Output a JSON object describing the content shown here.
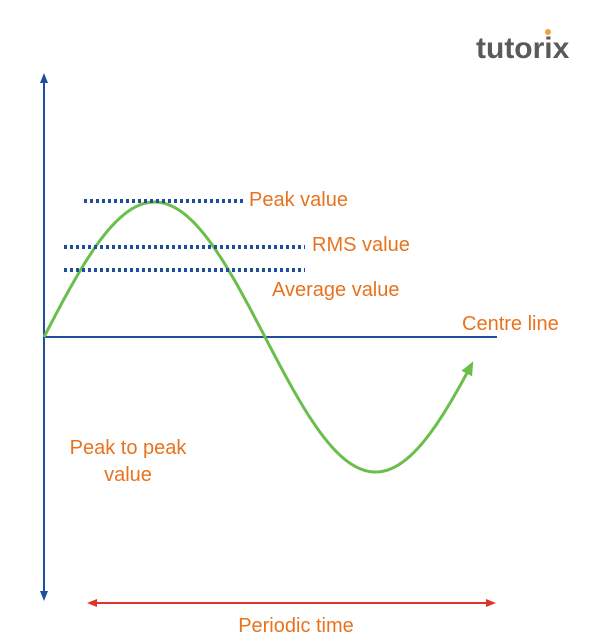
{
  "logo": "tutorix",
  "labels": {
    "peak": "Peak value",
    "rms": "RMS value",
    "average": "Average value",
    "centre": "Centre line",
    "peak_to_peak": [
      "Peak to peak",
      "value"
    ],
    "periodic": "Periodic time"
  }
}
